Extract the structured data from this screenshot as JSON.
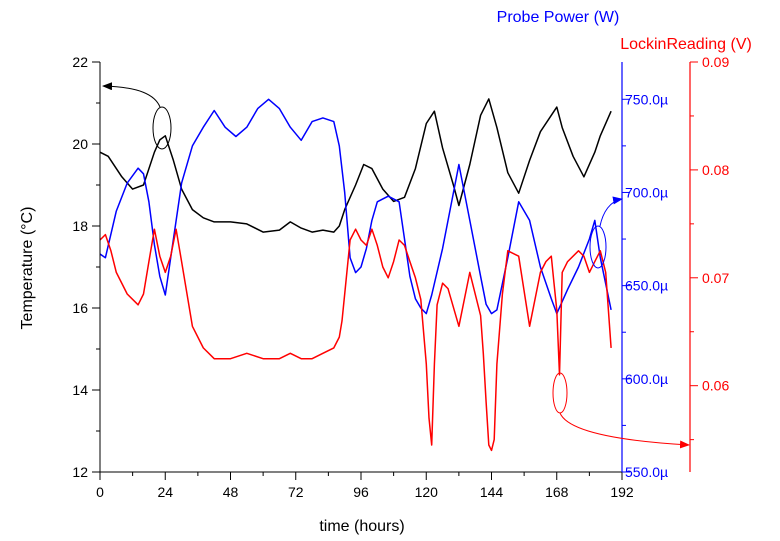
{
  "chart_data": {
    "type": "line",
    "xlabel": "time (hours)",
    "x_ticks": [
      0,
      24,
      48,
      72,
      96,
      120,
      144,
      168,
      192
    ],
    "xlim": [
      0,
      192
    ],
    "axes": {
      "temperature": {
        "label": "Temperature (°C)",
        "ylim": [
          12,
          22
        ],
        "ticks": [
          "12",
          "14",
          "16",
          "18",
          "20",
          "22"
        ],
        "color": "#000000"
      },
      "probe_power": {
        "label": "Probe Power (W)",
        "ylim": [
          0.00055,
          0.00077
        ],
        "ticks": [
          "550.0µ",
          "600.0µ",
          "650.0µ",
          "700.0µ",
          "750.0µ"
        ],
        "tick_values": [
          0.00055,
          0.0006,
          0.00065,
          0.0007,
          0.00075
        ],
        "color": "#0000ff"
      },
      "lockin": {
        "label": "LockinReading (V)",
        "ylim": [
          0.052,
          0.09
        ],
        "ticks": [
          "0.06",
          "0.07",
          "0.08",
          "0.09"
        ],
        "tick_values": [
          0.06,
          0.07,
          0.08,
          0.09
        ],
        "color": "#ff0000"
      }
    },
    "series": [
      {
        "name": "Temperature",
        "axis": "temperature",
        "color": "#000000",
        "x": [
          0,
          3,
          8,
          12,
          16,
          20,
          22,
          24,
          27,
          30,
          34,
          38,
          42,
          48,
          54,
          60,
          66,
          70,
          74,
          78,
          82,
          86,
          88,
          90,
          94,
          97,
          100,
          104,
          108,
          112,
          116,
          120,
          123,
          126,
          130,
          132,
          136,
          140,
          143,
          146,
          150,
          154,
          158,
          162,
          166,
          168,
          170,
          174,
          178,
          182,
          184,
          188
        ],
        "y": [
          19.8,
          19.7,
          19.2,
          18.9,
          19.0,
          19.8,
          20.1,
          20.2,
          19.6,
          18.9,
          18.4,
          18.2,
          18.1,
          18.1,
          18.05,
          17.85,
          17.9,
          18.1,
          17.95,
          17.85,
          17.9,
          17.85,
          18.0,
          18.4,
          19.0,
          19.5,
          19.4,
          18.9,
          18.6,
          18.7,
          19.4,
          20.5,
          20.8,
          19.9,
          19.0,
          18.5,
          19.5,
          20.7,
          21.1,
          20.4,
          19.3,
          18.8,
          19.6,
          20.3,
          20.7,
          20.9,
          20.4,
          19.7,
          19.2,
          19.8,
          20.2,
          20.8
        ]
      },
      {
        "name": "Probe Power",
        "axis": "probe_power",
        "color": "#0000ff",
        "x": [
          0,
          2,
          6,
          10,
          14,
          16,
          18,
          20,
          22,
          24,
          26,
          30,
          34,
          38,
          42,
          46,
          50,
          54,
          58,
          62,
          66,
          70,
          74,
          78,
          82,
          86,
          88,
          90,
          92,
          94,
          96,
          98,
          100,
          102,
          106,
          110,
          112,
          114,
          116,
          118,
          120,
          122,
          126,
          132,
          136,
          140,
          142,
          144,
          146,
          150,
          154,
          158,
          162,
          166,
          168,
          172,
          176,
          180,
          182,
          184,
          188
        ],
        "y": [
          0.000667,
          0.000665,
          0.00069,
          0.000705,
          0.000713,
          0.00071,
          0.000695,
          0.000672,
          0.000655,
          0.000645,
          0.000665,
          0.000705,
          0.000725,
          0.000735,
          0.000744,
          0.000735,
          0.00073,
          0.000735,
          0.000745,
          0.00075,
          0.000745,
          0.000735,
          0.000728,
          0.000738,
          0.00074,
          0.000738,
          0.000725,
          0.0007,
          0.000665,
          0.000657,
          0.00066,
          0.00067,
          0.000685,
          0.000695,
          0.000698,
          0.000695,
          0.000675,
          0.000655,
          0.000643,
          0.000638,
          0.000635,
          0.000645,
          0.00067,
          0.000715,
          0.000685,
          0.000655,
          0.00064,
          0.000635,
          0.000637,
          0.000665,
          0.000695,
          0.000685,
          0.00066,
          0.000643,
          0.000635,
          0.000648,
          0.00066,
          0.000675,
          0.000685,
          0.000665,
          0.000637
        ]
      },
      {
        "name": "LockinReading",
        "axis": "lockin",
        "color": "#ff0000",
        "x": [
          0,
          2,
          4,
          6,
          10,
          14,
          16,
          18,
          20,
          22,
          24,
          26,
          28,
          30,
          34,
          38,
          42,
          48,
          54,
          60,
          66,
          70,
          74,
          78,
          82,
          86,
          88,
          89,
          90,
          92,
          94,
          96,
          98,
          100,
          102,
          104,
          106,
          108,
          110,
          112,
          114,
          116,
          118,
          120,
          121,
          122,
          123,
          124,
          126,
          128,
          132,
          136,
          140,
          141,
          142,
          143,
          144,
          145,
          146,
          148,
          150,
          154,
          158,
          162,
          164,
          166,
          167,
          168,
          169,
          170,
          172,
          176,
          178,
          180,
          182,
          184,
          186,
          188
        ],
        "y": [
          0.0735,
          0.074,
          0.0725,
          0.0705,
          0.0685,
          0.0675,
          0.0685,
          0.0715,
          0.0745,
          0.072,
          0.0705,
          0.072,
          0.0745,
          0.0715,
          0.0655,
          0.0635,
          0.0625,
          0.0625,
          0.063,
          0.0625,
          0.0625,
          0.063,
          0.0625,
          0.0625,
          0.063,
          0.0635,
          0.0645,
          0.066,
          0.0685,
          0.0735,
          0.0745,
          0.0735,
          0.073,
          0.0745,
          0.073,
          0.071,
          0.07,
          0.0715,
          0.0735,
          0.073,
          0.0715,
          0.07,
          0.068,
          0.062,
          0.057,
          0.0545,
          0.062,
          0.0675,
          0.0695,
          0.069,
          0.0655,
          0.0705,
          0.0665,
          0.063,
          0.0585,
          0.0545,
          0.054,
          0.055,
          0.062,
          0.0685,
          0.0725,
          0.072,
          0.0655,
          0.0705,
          0.0715,
          0.072,
          0.0695,
          0.067,
          0.061,
          0.0705,
          0.0715,
          0.0725,
          0.072,
          0.0705,
          0.0715,
          0.0725,
          0.0705,
          0.0635
        ]
      }
    ],
    "annotations": [
      {
        "series": "Temperature",
        "target_axis": "left",
        "note": "ellipse with arrow"
      },
      {
        "series": "Probe Power",
        "target_axis": "right-inner",
        "note": "ellipse with arrow"
      },
      {
        "series": "LockinReading",
        "target_axis": "right-outer",
        "note": "ellipse with arrow"
      }
    ],
    "grid": false,
    "legend": "none"
  }
}
